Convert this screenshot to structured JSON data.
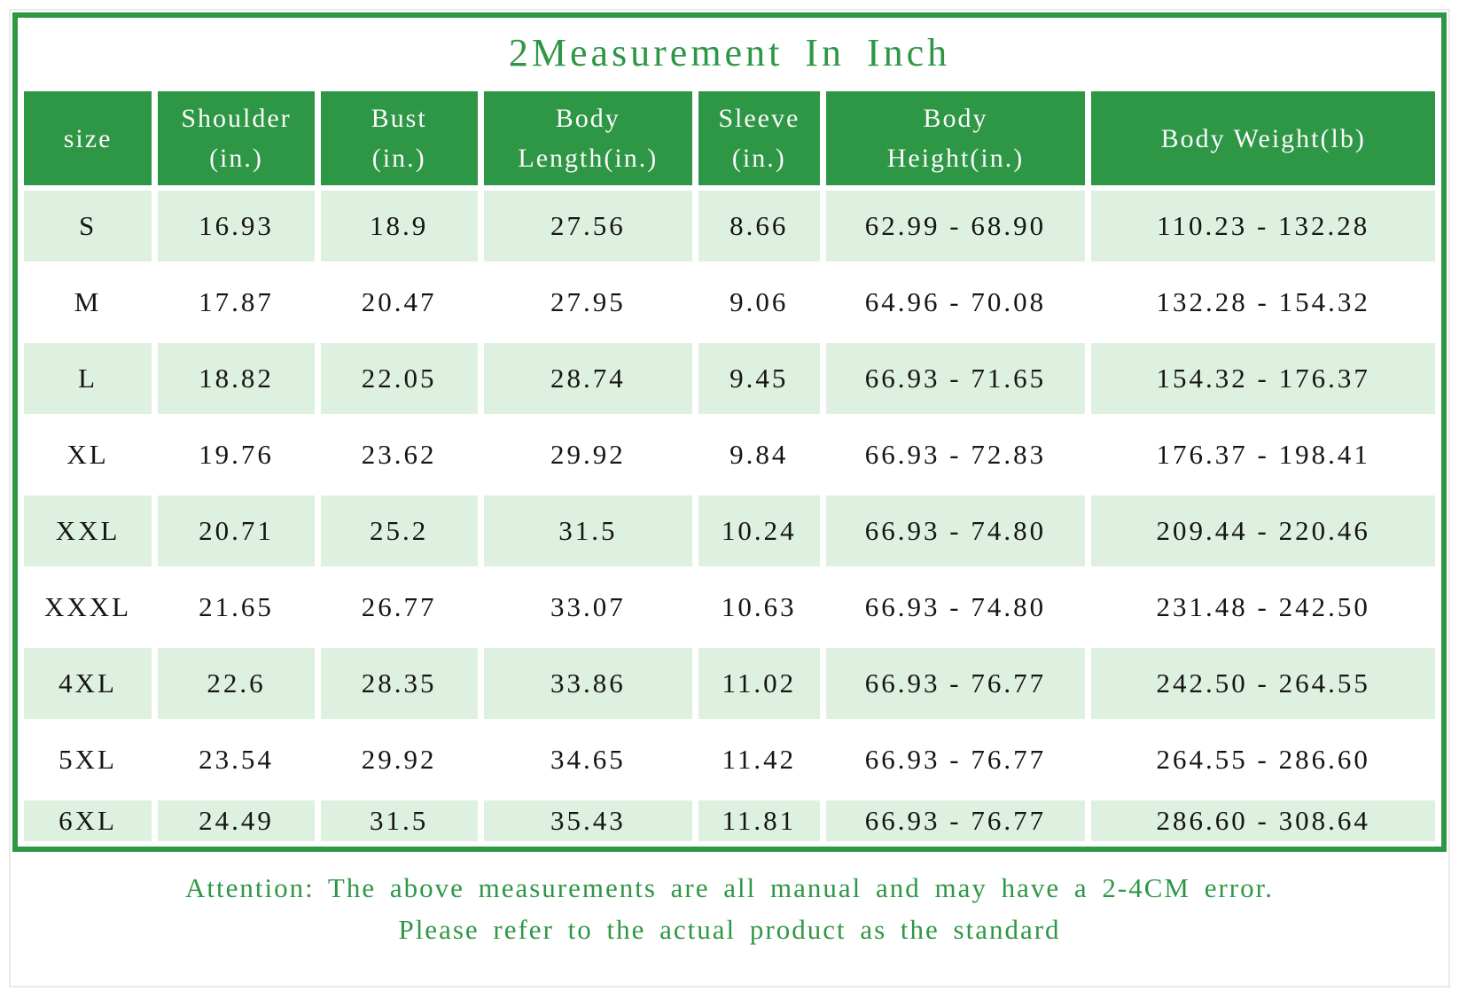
{
  "title": "2Measurement In Inch",
  "colors": {
    "green": "#2e9745",
    "light_green": "#def0df",
    "header_text": "#fbfbfb",
    "body_text": "#151515"
  },
  "table": {
    "columns": [
      {
        "key": "size",
        "label": "size",
        "width": "9.3%"
      },
      {
        "key": "shoulder",
        "label": "Shoulder\n(in.)",
        "width": "11.4%"
      },
      {
        "key": "bust",
        "label": "Bust\n(in.)",
        "width": "11.4%"
      },
      {
        "key": "body_length",
        "label": "Body\nLength(in.)",
        "width": "15.2%"
      },
      {
        "key": "sleeve",
        "label": "Sleeve\n(in.)",
        "width": "8.8%"
      },
      {
        "key": "body_height",
        "label": "Body\nHeight(in.)",
        "width": "18.9%"
      },
      {
        "key": "body_weight",
        "label": "Body Weight(lb)",
        "width": "25.0%"
      }
    ],
    "rows": [
      {
        "size": "S",
        "shoulder": "16.93",
        "bust": "18.9",
        "body_length": "27.56",
        "sleeve": "8.66",
        "body_height": "62.99 - 68.90",
        "body_weight": "110.23 - 132.28"
      },
      {
        "size": "M",
        "shoulder": "17.87",
        "bust": "20.47",
        "body_length": "27.95",
        "sleeve": "9.06",
        "body_height": "64.96 - 70.08",
        "body_weight": "132.28 - 154.32"
      },
      {
        "size": "L",
        "shoulder": "18.82",
        "bust": "22.05",
        "body_length": "28.74",
        "sleeve": "9.45",
        "body_height": "66.93 - 71.65",
        "body_weight": "154.32 - 176.37"
      },
      {
        "size": "XL",
        "shoulder": "19.76",
        "bust": "23.62",
        "body_length": "29.92",
        "sleeve": "9.84",
        "body_height": "66.93 - 72.83",
        "body_weight": "176.37 - 198.41"
      },
      {
        "size": "XXL",
        "shoulder": "20.71",
        "bust": "25.2",
        "body_length": "31.5",
        "sleeve": "10.24",
        "body_height": "66.93 - 74.80",
        "body_weight": "209.44 - 220.46"
      },
      {
        "size": "XXXL",
        "shoulder": "21.65",
        "bust": "26.77",
        "body_length": "33.07",
        "sleeve": "10.63",
        "body_height": "66.93 - 74.80",
        "body_weight": "231.48 - 242.50"
      },
      {
        "size": "4XL",
        "shoulder": "22.6",
        "bust": "28.35",
        "body_length": "33.86",
        "sleeve": "11.02",
        "body_height": "66.93 - 76.77",
        "body_weight": "242.50 - 264.55"
      },
      {
        "size": "5XL",
        "shoulder": "23.54",
        "bust": "29.92",
        "body_length": "34.65",
        "sleeve": "11.42",
        "body_height": "66.93 - 76.77",
        "body_weight": "264.55 - 286.60"
      },
      {
        "size": "6XL",
        "shoulder": "24.49",
        "bust": "31.5",
        "body_length": "35.43",
        "sleeve": "11.81",
        "body_height": "66.93 - 76.77",
        "body_weight": "286.60 - 308.64"
      }
    ]
  },
  "footer": {
    "line1": "Attention: The above measurements are all manual and may have a 2-4CM error.",
    "line2": "Please refer to the actual product as the standard"
  },
  "chart_data": {
    "type": "table",
    "title": "2Measurement In Inch",
    "columns": [
      "size",
      "Shoulder (in.)",
      "Bust (in.)",
      "Body Length(in.)",
      "Sleeve (in.)",
      "Body Height(in.)",
      "Body Weight(lb)"
    ],
    "rows": [
      [
        "S",
        "16.93",
        "18.9",
        "27.56",
        "8.66",
        "62.99 - 68.90",
        "110.23 - 132.28"
      ],
      [
        "M",
        "17.87",
        "20.47",
        "27.95",
        "9.06",
        "64.96 - 70.08",
        "132.28 - 154.32"
      ],
      [
        "L",
        "18.82",
        "22.05",
        "28.74",
        "9.45",
        "66.93 - 71.65",
        "154.32 - 176.37"
      ],
      [
        "XL",
        "19.76",
        "23.62",
        "29.92",
        "9.84",
        "66.93 - 72.83",
        "176.37 - 198.41"
      ],
      [
        "XXL",
        "20.71",
        "25.2",
        "31.5",
        "10.24",
        "66.93 - 74.80",
        "209.44 - 220.46"
      ],
      [
        "XXXL",
        "21.65",
        "26.77",
        "33.07",
        "10.63",
        "66.93 - 74.80",
        "231.48 - 242.50"
      ],
      [
        "4XL",
        "22.6",
        "28.35",
        "33.86",
        "11.02",
        "66.93 - 76.77",
        "242.50 - 264.55"
      ],
      [
        "5XL",
        "23.54",
        "29.92",
        "34.65",
        "11.42",
        "66.93 - 76.77",
        "264.55 - 286.60"
      ],
      [
        "6XL",
        "24.49",
        "31.5",
        "35.43",
        "11.81",
        "66.93 - 76.77",
        "286.60 - 308.64"
      ]
    ],
    "annotations": [
      "Attention: The above measurements are all manual and may have a 2-4CM error.",
      "Please refer to the actual product as the standard"
    ]
  }
}
